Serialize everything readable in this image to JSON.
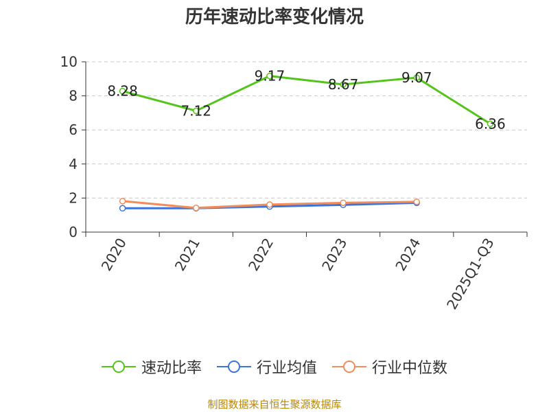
{
  "title": "历年速动比率变化情况",
  "source_note": "制图数据来自恒生聚源数据库",
  "colors": {
    "quick_ratio": "#52c41a",
    "industry_avg": "#3a74d8",
    "industry_median": "#f28c5a",
    "axis": "#333333",
    "grid": "#c8c8c8"
  },
  "chart_data": {
    "type": "line",
    "title": "历年速动比率变化情况",
    "categories": [
      "2020",
      "2021",
      "2022",
      "2023",
      "2024",
      "2025Q1-Q3"
    ],
    "ylim": [
      0,
      10
    ],
    "yticks": [
      0,
      2,
      4,
      6,
      8,
      10
    ],
    "grid": "horizontal dashed",
    "legend_position": "bottom",
    "series": [
      {
        "name": "速动比率",
        "color": "#52c41a",
        "show_labels": true,
        "values": [
          8.28,
          7.12,
          9.17,
          8.67,
          9.07,
          6.36
        ],
        "labels": [
          "8.28",
          "7.12",
          "9.17",
          "8.67",
          "9.07",
          "6.36"
        ]
      },
      {
        "name": "行业均值",
        "color": "#3a74d8",
        "show_labels": false,
        "values": [
          1.4,
          1.4,
          1.5,
          1.6,
          1.72,
          null
        ]
      },
      {
        "name": "行业中位数",
        "color": "#f28c5a",
        "show_labels": false,
        "values": [
          1.82,
          1.42,
          1.62,
          1.72,
          1.78,
          null
        ]
      }
    ]
  }
}
